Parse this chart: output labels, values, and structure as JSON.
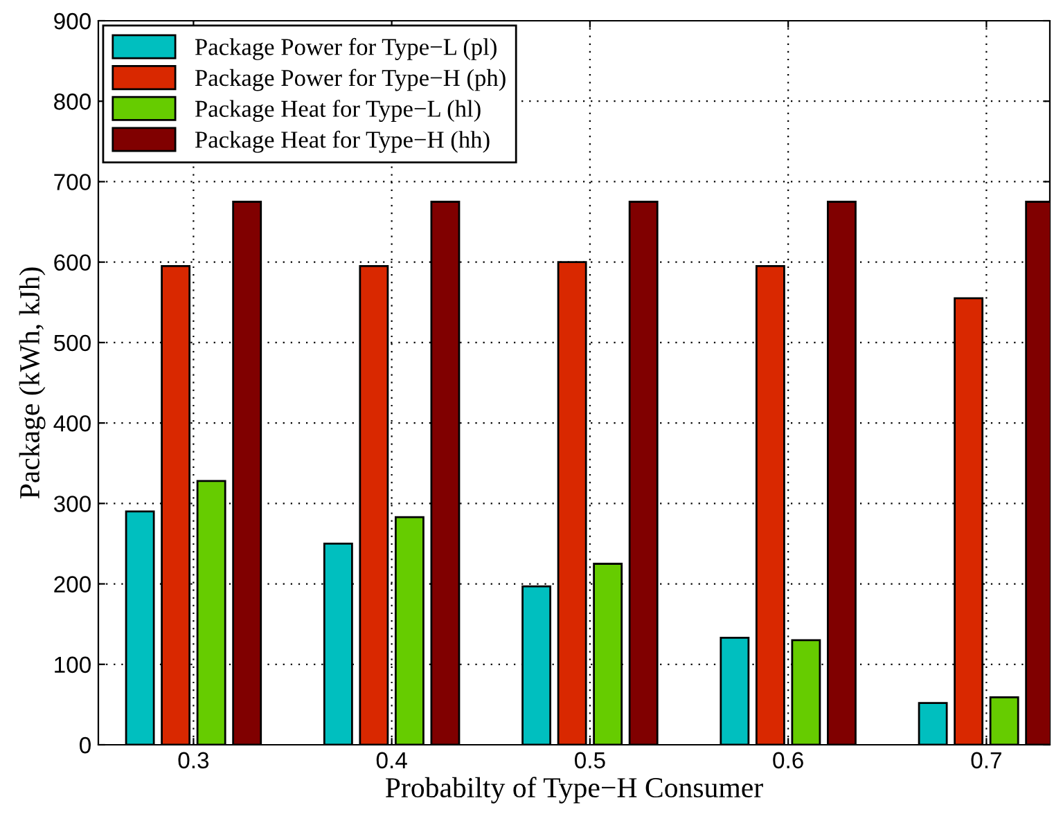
{
  "chart_data": {
    "type": "bar",
    "xlabel": "Probabilty of Type−H Consumer",
    "ylabel": "Package (kWh, kJh)",
    "categories": [
      "0.3",
      "0.4",
      "0.5",
      "0.6",
      "0.7"
    ],
    "series": [
      {
        "name": "Package Power for Type−L (pl)",
        "color": "#00bfbf",
        "values": [
          290,
          250,
          197,
          133,
          52
        ]
      },
      {
        "name": "Package Power for Type−H (ph)",
        "color": "#d92800",
        "values": [
          595,
          595,
          600,
          595,
          555
        ]
      },
      {
        "name": "Package Heat for Type−L (hl)",
        "color": "#66cc00",
        "values": [
          328,
          283,
          225,
          130,
          59
        ]
      },
      {
        "name": "Package Heat for Type−H (hh)",
        "color": "#800000",
        "values": [
          675,
          675,
          675,
          675,
          675
        ]
      }
    ],
    "ylim": [
      0,
      900
    ],
    "yticks": [
      0,
      100,
      200,
      300,
      400,
      500,
      600,
      700,
      800,
      900
    ],
    "grid": true,
    "legend": "top left"
  }
}
